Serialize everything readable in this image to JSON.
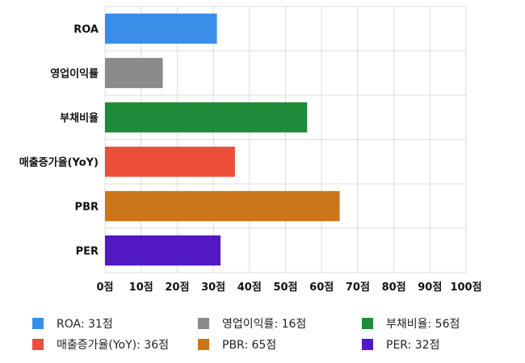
{
  "chart_data": {
    "type": "bar",
    "orientation": "horizontal",
    "categories": [
      "ROA",
      "영업이익률",
      "부채비율",
      "매출증가율(YoY)",
      "PBR",
      "PER"
    ],
    "values": [
      31,
      16,
      56,
      36,
      65,
      32
    ],
    "colors": [
      "#3b8ee8",
      "#8a8a8a",
      "#1e8c3a",
      "#ec4e3a",
      "#cb761a",
      "#5218c4"
    ],
    "xlim": [
      0,
      100
    ],
    "x_ticks": [
      "0점",
      "10점",
      "20점",
      "30점",
      "40점",
      "50점",
      "60점",
      "70점",
      "80점",
      "90점",
      "100점"
    ],
    "grid": true,
    "legend_position": "bottom",
    "legend": [
      "ROA: 31점",
      "영업이익률: 16점",
      "부채비율: 56점",
      "매출증가율(YoY): 36점",
      "PBR: 65점",
      "PER: 32점"
    ]
  }
}
